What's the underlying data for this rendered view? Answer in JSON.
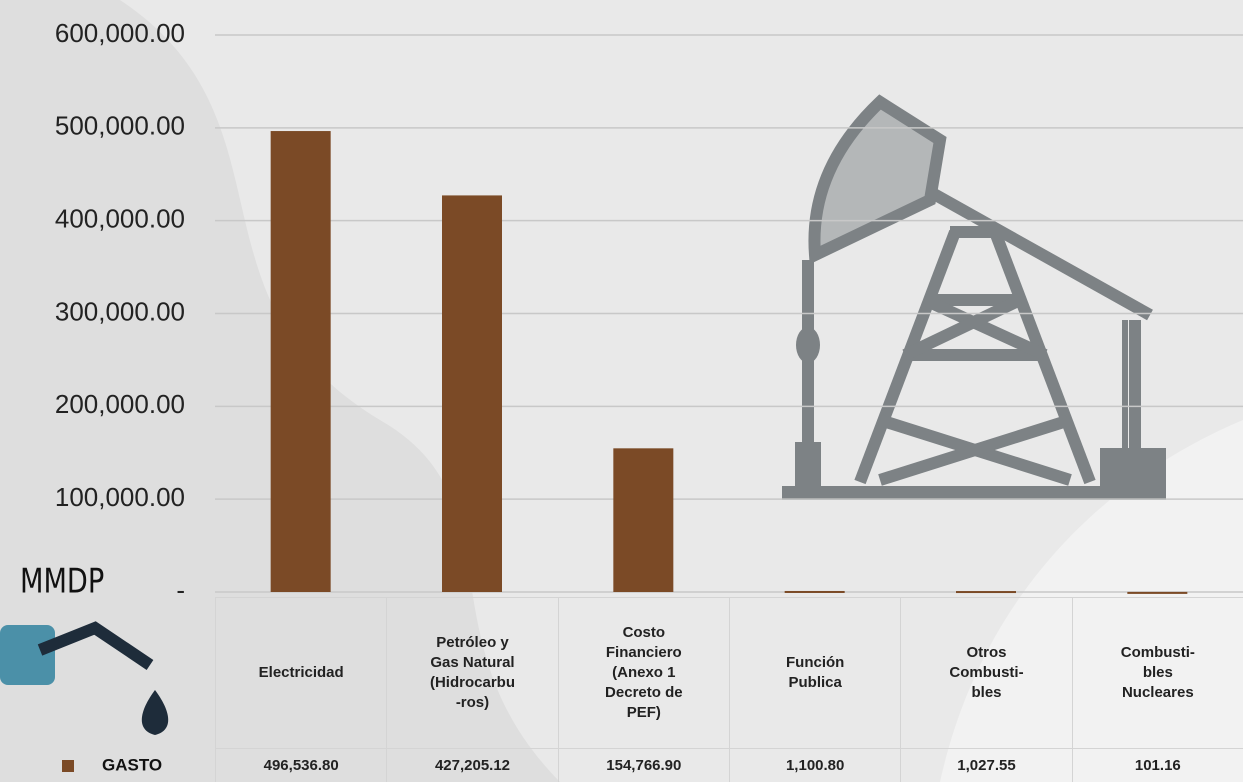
{
  "chart_data": {
    "type": "bar",
    "y_label": "MMDP",
    "categories": [
      "Electricidad",
      "Petróleo y\nGas Natural\n(Hidrocarbu\n-ros)",
      "Costo\nFinanciero\n(Anexo 1\nDecreto de\nPEF)",
      "Función\nPublica",
      "Otros\nCombusti-\nbles",
      "Combusti-\nbles\nNucleares"
    ],
    "series": [
      {
        "name": "GASTO",
        "color": "#7b4a26",
        "values": [
          496536.8,
          427205.12,
          154766.9,
          1100.8,
          1027.55,
          101.16
        ],
        "value_labels": [
          "496,536.80",
          "427,205.12",
          "154,766.90",
          "1,100.80",
          "1,027.55",
          "101.16"
        ]
      }
    ],
    "ylim": [
      0,
      600000
    ],
    "yticks": [
      {
        "value": 0,
        "label": "-"
      },
      {
        "value": 100000,
        "label": "100,000.00"
      },
      {
        "value": 200000,
        "label": "200,000.00"
      },
      {
        "value": 300000,
        "label": "300,000.00"
      },
      {
        "value": 400000,
        "label": "400,000.00"
      },
      {
        "value": 500000,
        "label": "500,000.00"
      },
      {
        "value": 600000,
        "label": "600,000.00"
      }
    ],
    "grid": true
  }
}
